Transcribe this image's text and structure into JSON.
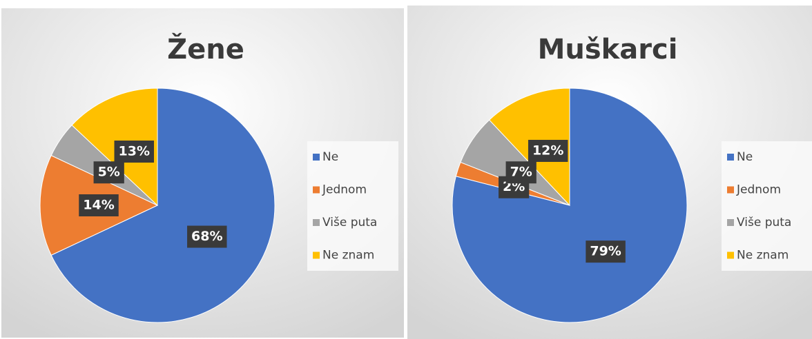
{
  "chart_data": [
    {
      "type": "pie",
      "title": "Žene",
      "categories": [
        "Ne",
        "Jednom",
        "Više puta",
        "Ne znam"
      ],
      "values": [
        68,
        14,
        5,
        13
      ],
      "value_labels": [
        "68%",
        "14%",
        "5%",
        "13%"
      ],
      "colors": [
        "#4472c4",
        "#ed7d31",
        "#a5a5a5",
        "#ffc000"
      ],
      "legend": "right"
    },
    {
      "type": "pie",
      "title": "Muškarci",
      "categories": [
        "Ne",
        "Jednom",
        "Više puta",
        "Ne znam"
      ],
      "values": [
        79,
        2,
        7,
        12
      ],
      "value_labels": [
        "79%",
        "2%",
        "7%",
        "12%"
      ],
      "colors": [
        "#4472c4",
        "#ed7d31",
        "#a5a5a5",
        "#ffc000"
      ],
      "legend": "right"
    }
  ]
}
